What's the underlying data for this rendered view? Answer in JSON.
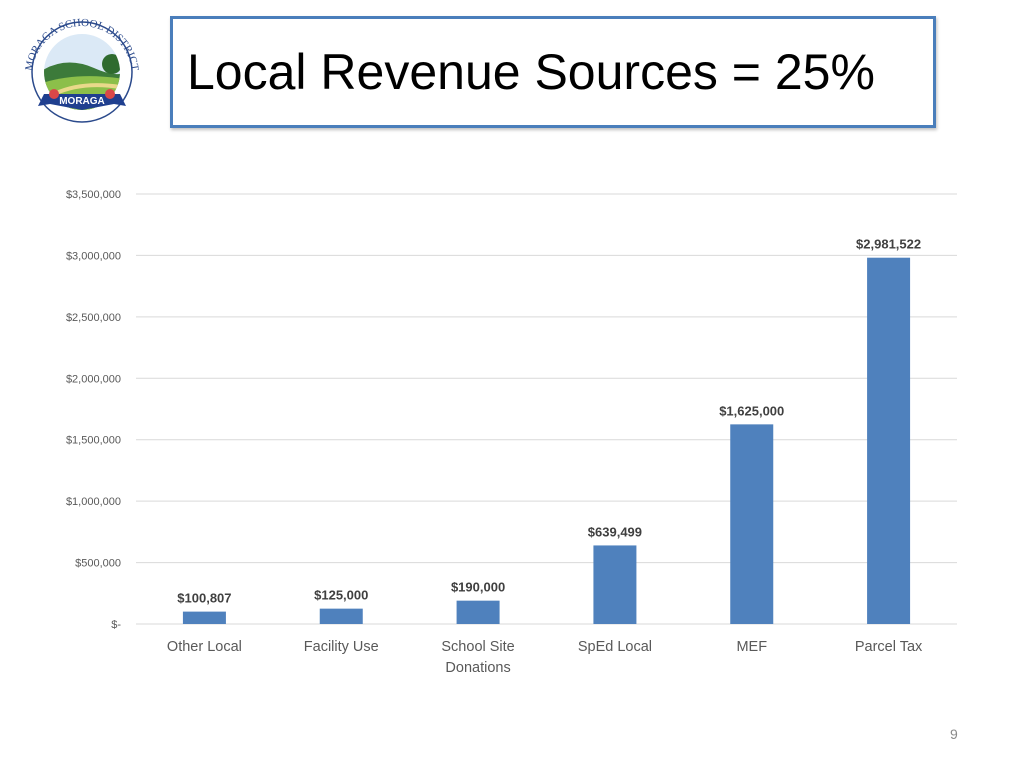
{
  "slide": {
    "title": "Local Revenue Sources = 25%",
    "page_number": "9"
  },
  "logo": {
    "arc_text": "MORAGA SCHOOL DISTRICT",
    "banner_text": "MORAGA"
  },
  "colors": {
    "bar": "#4f81bd",
    "title_border": "#4a7ebb",
    "grid": "#d9d9d9",
    "banner": "#1f3f8f"
  },
  "chart_data": {
    "type": "bar",
    "categories": [
      "Other Local",
      "Facility Use",
      "School Site Donations",
      "SpEd Local",
      "MEF",
      "Parcel Tax"
    ],
    "category_lines": [
      [
        "Other Local"
      ],
      [
        "Facility Use"
      ],
      [
        "School Site",
        "Donations"
      ],
      [
        "SpEd Local"
      ],
      [
        "MEF"
      ],
      [
        "Parcel Tax"
      ]
    ],
    "values": [
      100807,
      125000,
      190000,
      639499,
      1625000,
      2981522
    ],
    "data_labels": [
      "$100,807",
      "$125,000",
      "$190,000",
      "$639,499",
      "$1,625,000",
      "$2,981,522"
    ],
    "y_ticks": [
      0,
      500000,
      1000000,
      1500000,
      2000000,
      2500000,
      3000000,
      3500000
    ],
    "y_tick_labels": [
      "$-",
      "$500,000",
      "$1,000,000",
      "$1,500,000",
      "$2,000,000",
      "$2,500,000",
      "$3,000,000",
      "$3,500,000"
    ],
    "ylim": [
      0,
      3500000
    ],
    "grid": true,
    "legend": "none",
    "title": "",
    "xlabel": "",
    "ylabel": ""
  }
}
